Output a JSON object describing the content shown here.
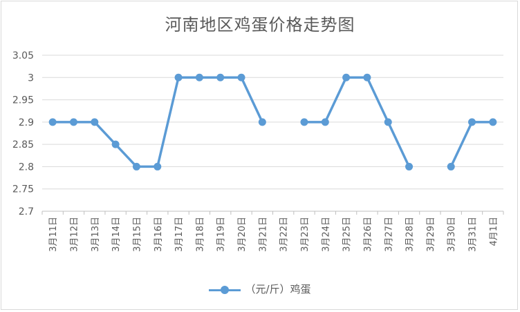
{
  "chart_data": {
    "type": "line",
    "title": "河南地区鸡蛋价格走势图",
    "categories": [
      "3月11日",
      "3月12日",
      "3月13日",
      "3月14日",
      "3月15日",
      "3月16日",
      "3月17日",
      "3月18日",
      "3月19日",
      "3月20日",
      "3月21日",
      "3月22日",
      "3月23日",
      "3月24日",
      "3月25日",
      "3月26日",
      "3月27日",
      "3月28日",
      "3月29日",
      "3月30日",
      "3月31日",
      "4月1日"
    ],
    "yticks": [
      "2.7",
      "2.75",
      "2.8",
      "2.85",
      "2.9",
      "2.95",
      "3",
      "3.05"
    ],
    "ylim": [
      2.7,
      3.05
    ],
    "grid": true,
    "legend_position": "bottom",
    "colors": {
      "series": "#5b9bd5",
      "grid": "#d9d9d9",
      "text": "#595959"
    },
    "series": [
      {
        "name": "（元/斤）鸡蛋",
        "values": [
          2.9,
          2.9,
          2.9,
          2.85,
          2.8,
          2.8,
          3.0,
          3.0,
          3.0,
          3.0,
          2.9,
          null,
          2.9,
          2.9,
          3.0,
          3.0,
          2.9,
          2.8,
          null,
          2.8,
          2.9,
          2.9
        ]
      }
    ]
  }
}
